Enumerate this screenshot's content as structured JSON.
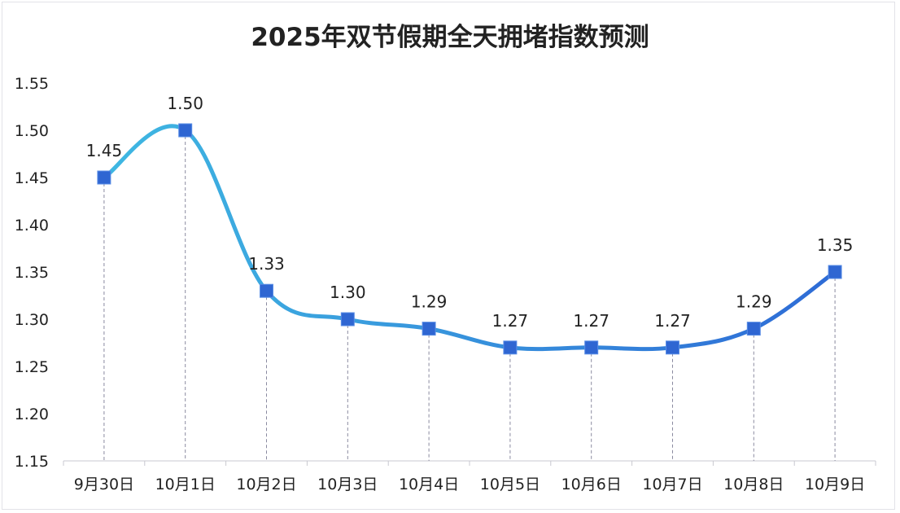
{
  "chart_data": {
    "type": "line",
    "title": "2025年双节假期全天拥堵指数预测",
    "categories": [
      "9月30日",
      "10月1日",
      "10月2日",
      "10月3日",
      "10月4日",
      "10月5日",
      "10月6日",
      "10月7日",
      "10月8日",
      "10月9日"
    ],
    "values": [
      1.45,
      1.5,
      1.33,
      1.3,
      1.29,
      1.27,
      1.27,
      1.27,
      1.29,
      1.35
    ],
    "data_labels": [
      "1.45",
      "1.50",
      "1.33",
      "1.30",
      "1.29",
      "1.27",
      "1.27",
      "1.27",
      "1.29",
      "1.35"
    ],
    "xlabel": "",
    "ylabel": "",
    "ylim": [
      1.15,
      1.55
    ],
    "yticks": [
      "1.15",
      "1.20",
      "1.25",
      "1.30",
      "1.35",
      "1.40",
      "1.45",
      "1.50",
      "1.55"
    ],
    "grid": false,
    "smooth": true,
    "drop_lines": true,
    "marker": "square",
    "colors": {
      "line_start": "#3fb8e2",
      "line_end": "#2e6bd6",
      "marker": "#2f66d2",
      "drop_line": "#8a8aa0",
      "text": "#222222"
    }
  }
}
